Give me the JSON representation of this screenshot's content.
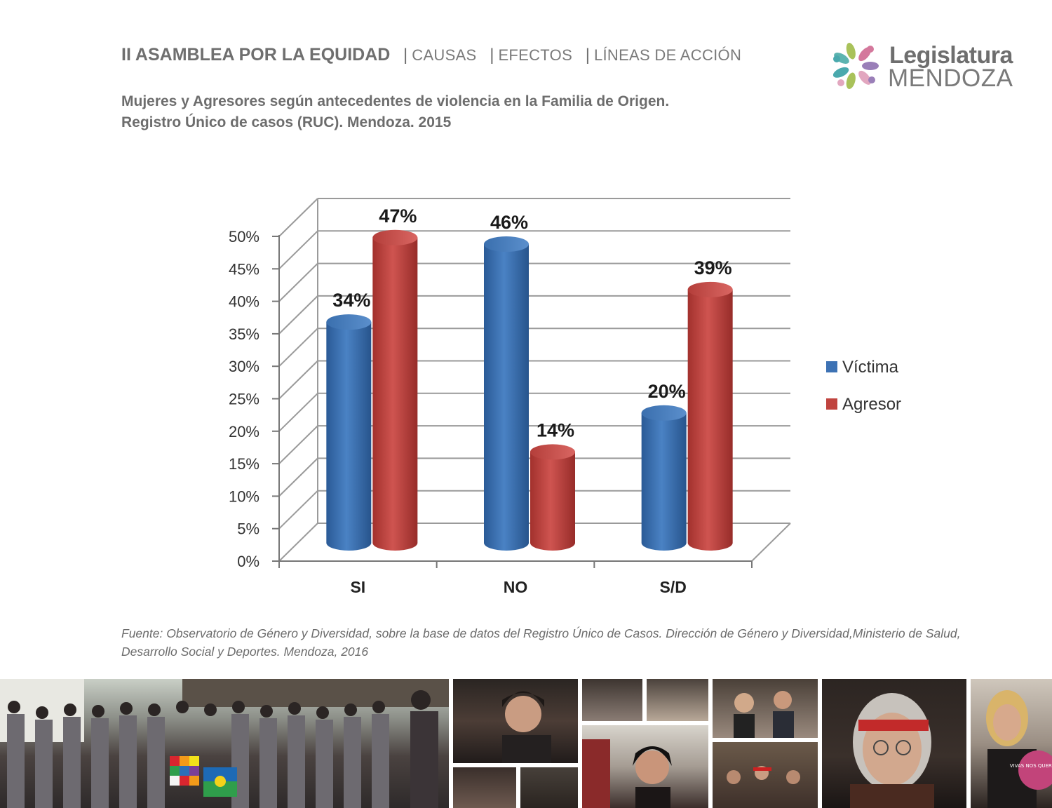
{
  "header": {
    "main": "II ASAMBLEA POR LA EQUIDAD",
    "items": [
      "CAUSAS",
      "EFECTOS",
      "LÍNEAS DE ACCIÓN"
    ]
  },
  "subtitle": {
    "line1": "Mujeres y Agresores según antecedentes de violencia en la Familia de Origen.",
    "line2": "Registro Único de casos (RUC). Mendoza. 2015"
  },
  "logo": {
    "line1": "Legislatura",
    "line2": "MENDOZA"
  },
  "chart_data": {
    "type": "bar",
    "categories": [
      "SI",
      "NO",
      "S/D"
    ],
    "series": [
      {
        "name": "Víctima",
        "values": [
          34,
          46,
          20
        ],
        "labels": [
          "34%",
          "46%",
          "20%"
        ],
        "color": "#3d72b4"
      },
      {
        "name": "Agresor",
        "values": [
          47,
          14,
          39
        ],
        "labels": [
          "47%",
          "14%",
          "39%"
        ],
        "color": "#c0443f"
      }
    ],
    "ylim": [
      0,
      50
    ],
    "yticks": [
      "0%",
      "5%",
      "10%",
      "15%",
      "20%",
      "25%",
      "30%",
      "35%",
      "40%",
      "45%",
      "50%"
    ],
    "grid": true,
    "legend": "right",
    "style": "3d-cylinder"
  },
  "source": {
    "line1": "Fuente: Observatorio de Género y Diversidad, sobre la base de datos del Registro Único de Casos. Dirección de Género y Diversidad,Ministerio de Salud,",
    "line2": "Desarrollo Social y Deportes. Mendoza, 2016"
  },
  "photo_strip": {
    "badge_text": "VIVAS NOS QUEREMOS"
  }
}
